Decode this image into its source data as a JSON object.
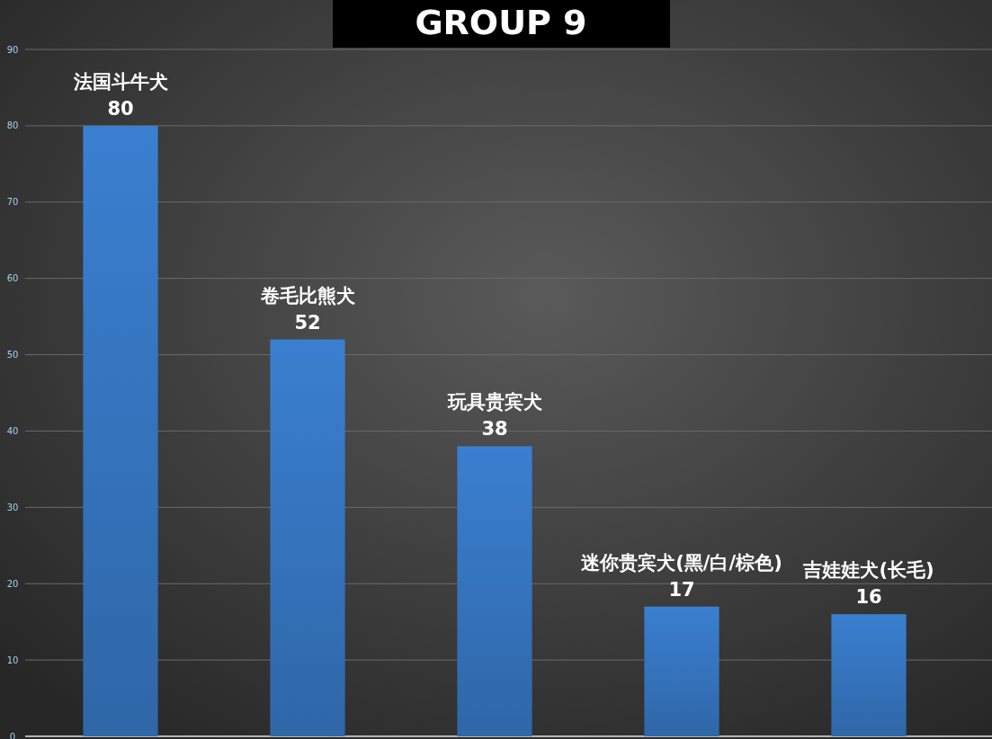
{
  "chart_data": {
    "type": "bar",
    "title": "GROUP 9",
    "categories": [
      "法国斗牛犬",
      "卷毛比熊犬",
      "玩具贵宾犬",
      "迷你贵宾犬(黑/白/棕色)",
      "吉娃娃犬(长毛)"
    ],
    "values": [
      80,
      52,
      38,
      17,
      16
    ],
    "color": "#3a7fd0",
    "ylim": [
      0,
      90
    ],
    "yticks": [
      0,
      10,
      20,
      30,
      40,
      50,
      60,
      70,
      80,
      90
    ],
    "grid": "y",
    "data_labels": true
  }
}
